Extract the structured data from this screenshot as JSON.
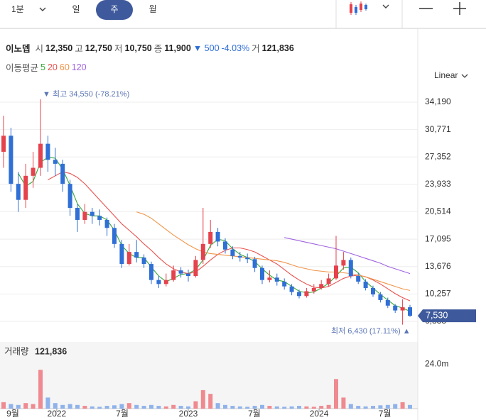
{
  "toolbar": {
    "interval": "1분",
    "tabs": [
      "일",
      "주",
      "월"
    ],
    "selected": 1
  },
  "quote": {
    "name": "이노뎁",
    "open_label": "시",
    "open": "12,350",
    "high_label": "고",
    "high": "12,750",
    "low_label": "저",
    "low": "10,750",
    "close_label": "종",
    "close": "11,900",
    "change": "▼ 500",
    "change_pct": "-4.03%",
    "volume_label": "거",
    "volume": "121,836"
  },
  "ma": {
    "label": "이동평균",
    "periods": [
      {
        "label": "5",
        "color": "#3aa83a"
      },
      {
        "label": "20",
        "color": "#e8524f"
      },
      {
        "label": "60",
        "color": "#f0954a"
      },
      {
        "label": "120",
        "color": "#a064e0"
      }
    ]
  },
  "scale": "Linear",
  "chart_data": {
    "type": "candlestick",
    "open": [
      28000,
      30000,
      24000,
      22000,
      25000,
      26000,
      29000,
      27000,
      26500,
      24000,
      21000,
      19500,
      20500,
      20000,
      19500,
      18500,
      16500,
      14000,
      15500,
      14800,
      14000,
      12000,
      11500,
      12000,
      13200,
      12800,
      12500,
      14500,
      16500,
      18000,
      16800,
      15800,
      15000,
      14800,
      14600,
      13500,
      12000,
      12300,
      11800,
      11200,
      10500,
      10000,
      10600,
      11000,
      11500,
      12200,
      13800,
      14500,
      12500,
      11800,
      11000,
      10200,
      9500,
      8800,
      8200,
      8600
    ],
    "high": [
      32500,
      31000,
      25500,
      26500,
      28000,
      34550,
      30000,
      28500,
      27000,
      24500,
      21500,
      21500,
      21000,
      20800,
      19800,
      19000,
      17000,
      16500,
      17000,
      15200,
      14300,
      12500,
      12800,
      13800,
      13600,
      13300,
      15000,
      21000,
      19500,
      18500,
      17200,
      16200,
      15500,
      15300,
      14900,
      13800,
      13200,
      12800,
      12200,
      11500,
      10800,
      11000,
      11500,
      12000,
      12800,
      17500,
      15500,
      14800,
      12900,
      12100,
      11300,
      10500,
      9800,
      9000,
      9600,
      8900
    ],
    "low": [
      26000,
      23000,
      20500,
      21000,
      23500,
      25000,
      25500,
      25000,
      23000,
      20000,
      18000,
      19000,
      19000,
      18800,
      17500,
      16000,
      13500,
      13800,
      14200,
      13500,
      11500,
      11000,
      11200,
      11800,
      12300,
      11800,
      12300,
      14000,
      16000,
      16200,
      15300,
      14600,
      14300,
      14100,
      13000,
      11500,
      11700,
      11300,
      10800,
      10100,
      9700,
      9800,
      10300,
      10800,
      11200,
      12000,
      13300,
      12200,
      11500,
      10700,
      9900,
      9200,
      8500,
      7900,
      6430,
      7400
    ],
    "close": [
      30000,
      24000,
      22000,
      25000,
      26000,
      29000,
      27000,
      26500,
      24000,
      21000,
      19500,
      20500,
      20000,
      19500,
      18500,
      16500,
      14000,
      15500,
      14800,
      14000,
      12000,
      11500,
      12000,
      13200,
      12800,
      12500,
      14500,
      16500,
      18000,
      16800,
      15800,
      15000,
      14800,
      14600,
      13500,
      12000,
      12300,
      11800,
      11200,
      10500,
      10000,
      10600,
      11000,
      11500,
      12200,
      13800,
      14500,
      12500,
      11800,
      11000,
      10200,
      9500,
      8800,
      8200,
      8600,
      7530
    ],
    "up_color": "#e5424d",
    "down_color": "#2f6fd6",
    "series": [
      {
        "name": "5",
        "color": "#3aa83a",
        "values": [
          null,
          null,
          25300,
          23700,
          24300,
          26700,
          27300,
          27200,
          25800,
          23800,
          21500,
          20300,
          20000,
          20000,
          19500,
          18200,
          16300,
          15300,
          14800,
          14800,
          13600,
          12500,
          11800,
          12200,
          12700,
          12800,
          13300,
          14500,
          16300,
          17100,
          16900,
          15900,
          15200,
          14800,
          14300,
          13400,
          12600,
          12000,
          11800,
          11200,
          10600,
          10400,
          10500,
          11000,
          11600,
          12500,
          13500,
          13600,
          12900,
          11800,
          11000,
          10200,
          9500,
          8800,
          8500,
          8100
        ]
      },
      {
        "name": "20",
        "color": "#e8524f",
        "values": [
          null,
          null,
          null,
          null,
          null,
          null,
          24500,
          25000,
          25500,
          25300,
          24800,
          24000,
          23000,
          22000,
          21000,
          20000,
          19000,
          18200,
          17400,
          16500,
          15700,
          14800,
          14000,
          13400,
          13000,
          12800,
          13000,
          13700,
          14500,
          15200,
          15700,
          16000,
          16000,
          15800,
          15500,
          15000,
          14500,
          14000,
          13300,
          12600,
          12000,
          11500,
          11100,
          11000,
          11200,
          11700,
          12200,
          12500,
          12600,
          12400,
          12000,
          11500,
          10900,
          10300,
          9800,
          9400
        ]
      },
      {
        "name": "60",
        "color": "#f0954a",
        "values": [
          null,
          null,
          null,
          null,
          null,
          null,
          null,
          null,
          null,
          null,
          null,
          null,
          null,
          null,
          null,
          null,
          null,
          null,
          20500,
          20200,
          19700,
          19000,
          18300,
          17600,
          17000,
          16400,
          15900,
          15500,
          15300,
          15200,
          15100,
          15000,
          14900,
          14800,
          14700,
          14600,
          14500,
          14400,
          14200,
          13900,
          13600,
          13400,
          13200,
          13100,
          13000,
          13000,
          12900,
          12800,
          12600,
          12400,
          12100,
          11800,
          11500,
          11200,
          10900,
          10700
        ]
      },
      {
        "name": "120",
        "color": "#a064e0",
        "values": [
          null,
          null,
          null,
          null,
          null,
          null,
          null,
          null,
          null,
          null,
          null,
          null,
          null,
          null,
          null,
          null,
          null,
          null,
          null,
          null,
          null,
          null,
          null,
          null,
          null,
          null,
          null,
          null,
          null,
          null,
          null,
          null,
          null,
          null,
          null,
          null,
          null,
          null,
          17300,
          17100,
          16900,
          16700,
          16500,
          16300,
          16100,
          15900,
          15600,
          15300,
          15000,
          14700,
          14400,
          14100,
          13700,
          13400,
          13100,
          12800
        ]
      }
    ],
    "ylim": [
      5332,
      35430
    ],
    "yticks": [
      {
        "value": 34190,
        "label": "34,190"
      },
      {
        "value": 30771,
        "label": "30,771"
      },
      {
        "value": 27352,
        "label": "27,352"
      },
      {
        "value": 23933,
        "label": "23,933"
      },
      {
        "value": 20514,
        "label": "20,514"
      },
      {
        "value": 17095,
        "label": "17,095"
      },
      {
        "value": 13676,
        "label": "13,676"
      },
      {
        "value": 10257,
        "label": "10,257"
      },
      {
        "value": 6838,
        "label": "6,838"
      }
    ],
    "high_note": "▼ 최고 34,550 (-78.21%)",
    "low_note": "최저 6,430 (17.11%) ▲",
    "last_price": {
      "value": 7530,
      "label": "7,530"
    },
    "volume": {
      "title": "거래량",
      "value_label": "121,836",
      "values": [
        3500000,
        2500000,
        2000000,
        3000000,
        2500000,
        21000000,
        6000000,
        3000000,
        2000000,
        2500000,
        2000000,
        1500000,
        1200000,
        1000000,
        1500000,
        1800000,
        2500000,
        3000000,
        2000000,
        1500000,
        2000000,
        1500000,
        1200000,
        2000000,
        1500000,
        1200000,
        4000000,
        10000000,
        8000000,
        3000000,
        2000000,
        1500000,
        1200000,
        1000000,
        1500000,
        2000000,
        1500000,
        1200000,
        1000000,
        1200000,
        1500000,
        1200000,
        1000000,
        1500000,
        2000000,
        16000000,
        6000000,
        2500000,
        1500000,
        1200000,
        1500000,
        1800000,
        2000000,
        2500000,
        3500000,
        2000000
      ],
      "ylim": [
        0,
        28000000
      ],
      "yticks": [
        {
          "value": 24000000,
          "label": "24.0m"
        }
      ]
    },
    "x_labels": [
      {
        "label": "9월",
        "index": 1.25
      },
      {
        "label": "2022",
        "index": 7.2
      },
      {
        "label": "7월",
        "index": 16.06
      },
      {
        "label": "2023",
        "index": 25
      },
      {
        "label": "7월",
        "index": 33.94
      },
      {
        "label": "2024",
        "index": 42.7
      },
      {
        "label": "7월",
        "index": 51.6
      }
    ]
  }
}
